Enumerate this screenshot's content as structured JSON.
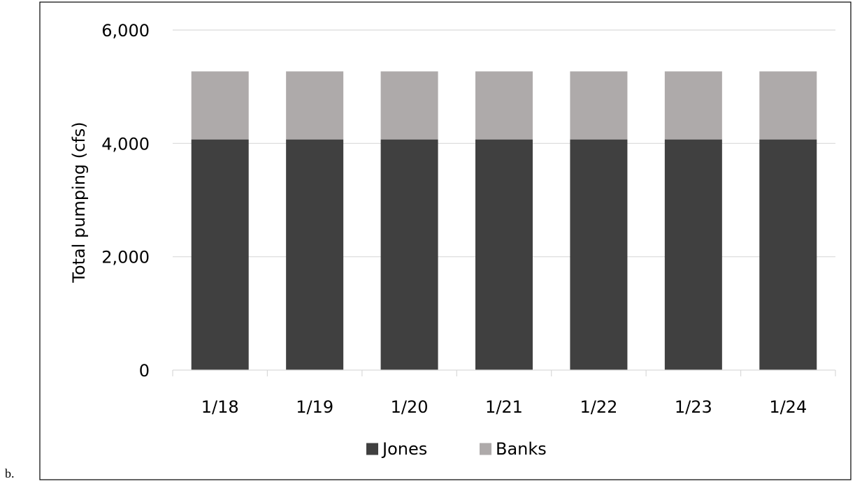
{
  "panel_label": "b.",
  "chart_data": {
    "type": "bar",
    "stacked": true,
    "categories": [
      "1/18",
      "1/19",
      "1/20",
      "1/21",
      "1/22",
      "1/23",
      "1/24"
    ],
    "series": [
      {
        "name": "Jones",
        "color": "#404040",
        "values": [
          4070,
          4070,
          4070,
          4070,
          4070,
          4070,
          4070
        ]
      },
      {
        "name": "Banks",
        "color": "#aeaaaa",
        "values": [
          1200,
          1200,
          1200,
          1200,
          1200,
          1200,
          1200
        ]
      }
    ],
    "title": "",
    "xlabel": "",
    "ylabel": "Total pumping (cfs)",
    "ylim": [
      0,
      6000
    ],
    "yticks": [
      0,
      2000,
      4000,
      6000
    ],
    "ytick_labels": [
      "0",
      "2,000",
      "4,000",
      "6,000"
    ],
    "grid": true,
    "grid_color": "#d9d9d9",
    "legend_position": "bottom"
  }
}
